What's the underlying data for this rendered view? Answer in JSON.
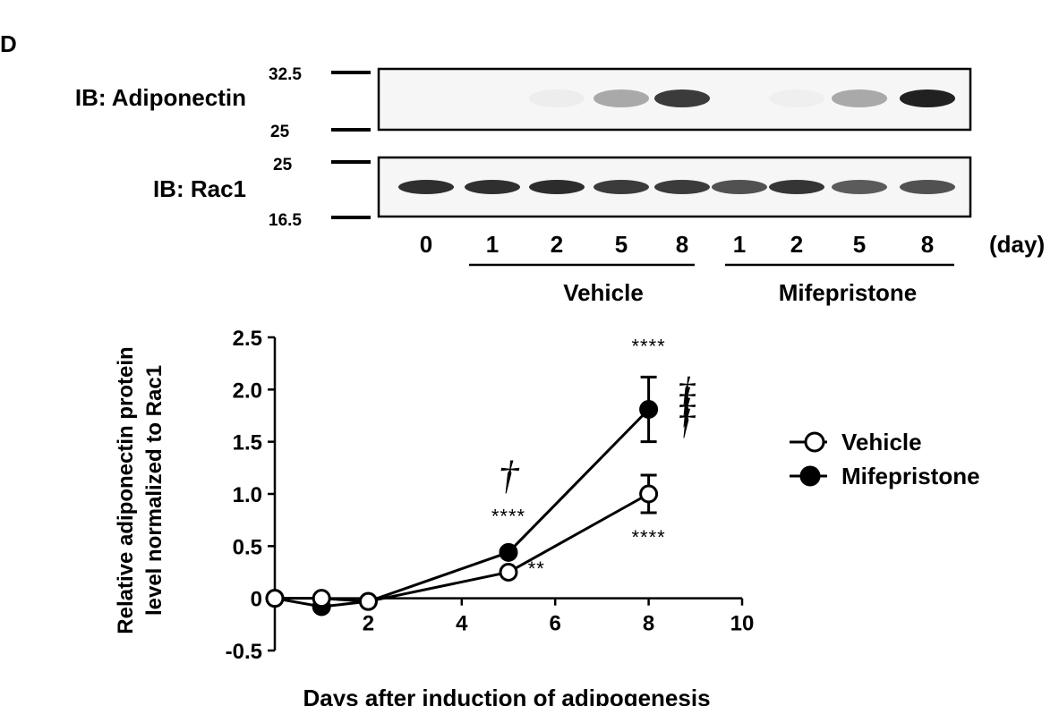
{
  "panel_label": "D",
  "blot": {
    "rows": [
      {
        "label": "IB: Adiponectin",
        "marker_top": "32.5",
        "marker_bottom": "25",
        "band_intensity": [
          0.0,
          0.0,
          0.04,
          0.35,
          0.85,
          0.0,
          0.03,
          0.35,
          0.97
        ]
      },
      {
        "label": "IB: Rac1",
        "marker_top": "25",
        "marker_bottom": "16.5",
        "band_intensity": [
          0.9,
          0.9,
          0.92,
          0.85,
          0.85,
          0.75,
          0.88,
          0.7,
          0.75
        ]
      }
    ],
    "lanes": [
      "0",
      "1",
      "2",
      "5",
      "8",
      "1",
      "2",
      "5",
      "8"
    ],
    "unit_label": "(day)",
    "groups": [
      {
        "name": "Vehicle"
      },
      {
        "name": "Mifepristone"
      }
    ],
    "band_color": "#1a1a1a"
  },
  "chart_data": {
    "type": "line",
    "xlabel": "Days after induction of adipogenesis",
    "ylabel_lines": [
      "Relative adiponectin protein",
      "level normalized to Rac1"
    ],
    "xlim": [
      0,
      10
    ],
    "ylim": [
      -0.5,
      2.5
    ],
    "xticks": [
      2,
      4,
      6,
      8,
      10
    ],
    "yticks": [
      -0.5,
      0,
      0.5,
      1.0,
      1.5,
      2.0,
      2.5
    ],
    "ytick_labels": [
      "-0.5",
      "0",
      "0.5",
      "1.0",
      "1.5",
      "2.0",
      "2.5"
    ],
    "grid": false,
    "legend_position": "right",
    "series": [
      {
        "name": "Vehicle",
        "marker": "open-circle",
        "x": [
          0,
          1,
          2,
          5,
          8
        ],
        "y": [
          0,
          0,
          -0.03,
          0.25,
          1.0
        ],
        "err": [
          0,
          0,
          0,
          0.03,
          0.18
        ]
      },
      {
        "name": "Mifepristone",
        "marker": "filled-circle",
        "x": [
          0,
          1,
          2,
          5,
          8
        ],
        "y": [
          0,
          -0.08,
          -0.03,
          0.44,
          1.81
        ],
        "err": [
          0,
          0,
          0,
          0,
          0.31
        ]
      }
    ],
    "annotations": [
      {
        "text": "****",
        "x": 5,
        "y": 0.72
      },
      {
        "text": "†",
        "x": 5,
        "y": 1.05
      },
      {
        "text": "**",
        "x": 5.6,
        "y": 0.22
      },
      {
        "text": "****",
        "x": 8,
        "y": 2.35
      },
      {
        "text": "****",
        "x": 8,
        "y": 0.52
      },
      {
        "text": "††††",
        "x": 8.8,
        "y": 1.73
      }
    ]
  }
}
